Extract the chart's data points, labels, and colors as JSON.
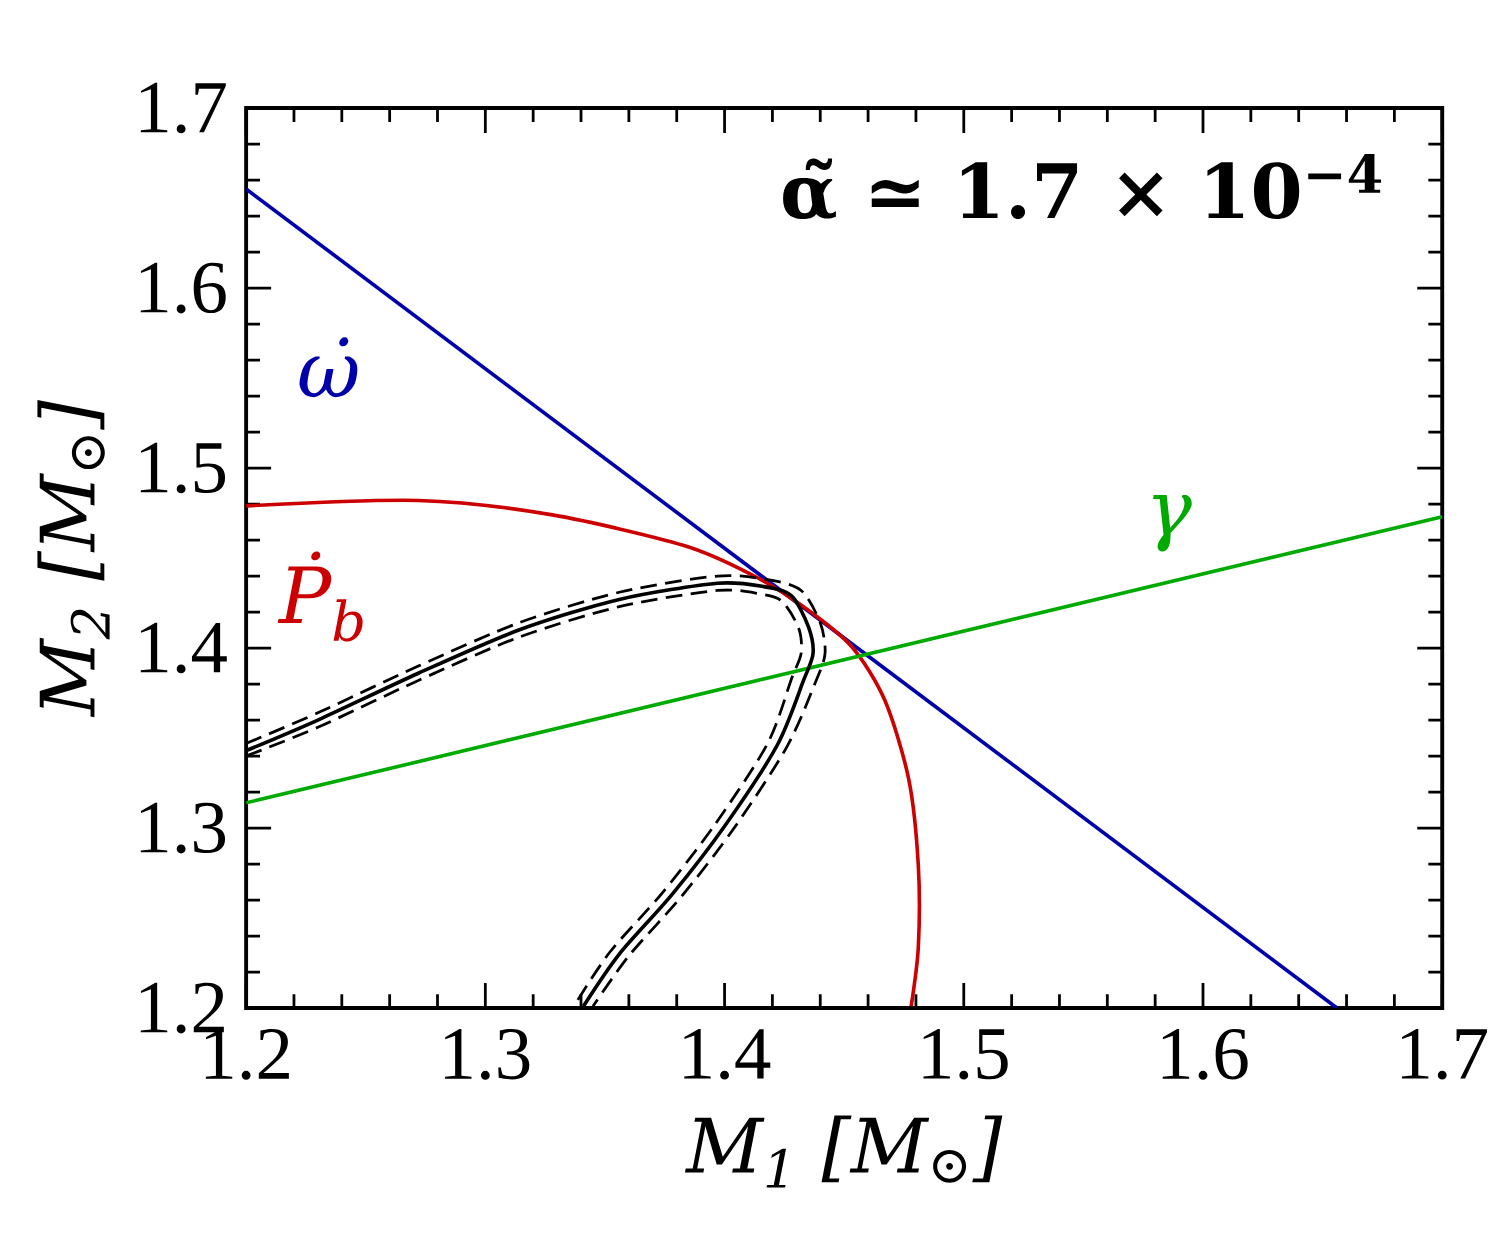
{
  "chart_data": {
    "type": "line",
    "xlabel": "M$_{1}$   [M$_{⊙}$]",
    "ylabel": "M$_{2}$   [M$_{⊙}$]",
    "xlim": [
      1.2,
      1.7
    ],
    "ylim": [
      1.2,
      1.7
    ],
    "xticks": [
      1.2,
      1.3,
      1.4,
      1.5,
      1.6,
      1.7
    ],
    "yticks": [
      1.2,
      1.3,
      1.4,
      1.5,
      1.6,
      1.7
    ],
    "grid": false,
    "series": [
      {
        "name": "ω̇",
        "color": "#0000aa",
        "line_style": "solid",
        "x": [
          1.2,
          1.656
        ],
        "values": [
          1.655,
          1.2
        ]
      },
      {
        "name": "Ṗ$_{b}$",
        "color": "#cc0000",
        "line_style": "solid",
        "x": [
          1.2,
          1.272,
          1.328,
          1.383,
          1.411,
          1.433,
          1.453,
          1.467,
          1.477,
          1.481,
          1.481,
          1.478
        ],
        "values": [
          1.479,
          1.482,
          1.474,
          1.457,
          1.441,
          1.423,
          1.401,
          1.371,
          1.327,
          1.279,
          1.234,
          1.201
        ]
      },
      {
        "name": "γ",
        "color": "#00aa00",
        "line_style": "solid",
        "x": [
          1.2,
          1.7
        ],
        "values": [
          1.314,
          1.473
        ]
      },
      {
        "color": "#000000",
        "line_style": "solid",
        "x": [
          1.2,
          1.23,
          1.272,
          1.314,
          1.356,
          1.397,
          1.417,
          1.428,
          1.435,
          1.437,
          1.433,
          1.422,
          1.4,
          1.378,
          1.356,
          1.341
        ],
        "values": [
          1.343,
          1.36,
          1.386,
          1.41,
          1.427,
          1.436,
          1.434,
          1.429,
          1.412,
          1.397,
          1.382,
          1.346,
          1.301,
          1.263,
          1.23,
          1.201
        ]
      },
      {
        "color": "#000000",
        "line_style": "dashed",
        "x": [
          1.2,
          1.23,
          1.272,
          1.314,
          1.356,
          1.397,
          1.418,
          1.432,
          1.44,
          1.442,
          1.438,
          1.426,
          1.404,
          1.382,
          1.36,
          1.345
        ],
        "values": [
          1.347,
          1.364,
          1.39,
          1.414,
          1.431,
          1.44,
          1.438,
          1.432,
          1.414,
          1.397,
          1.381,
          1.345,
          1.3,
          1.262,
          1.229,
          1.201
        ]
      },
      {
        "color": "#000000",
        "line_style": "dashed",
        "x": [
          1.2,
          1.23,
          1.272,
          1.314,
          1.356,
          1.397,
          1.415,
          1.424,
          1.431,
          1.432,
          1.428,
          1.418,
          1.396,
          1.374,
          1.352,
          1.337
        ],
        "values": [
          1.34,
          1.356,
          1.382,
          1.406,
          1.423,
          1.432,
          1.43,
          1.426,
          1.411,
          1.397,
          1.383,
          1.347,
          1.302,
          1.264,
          1.231,
          1.201
        ]
      }
    ],
    "annotations": [
      "α̃ ≃ 1.7 × 10$^{−4}$"
    ]
  }
}
